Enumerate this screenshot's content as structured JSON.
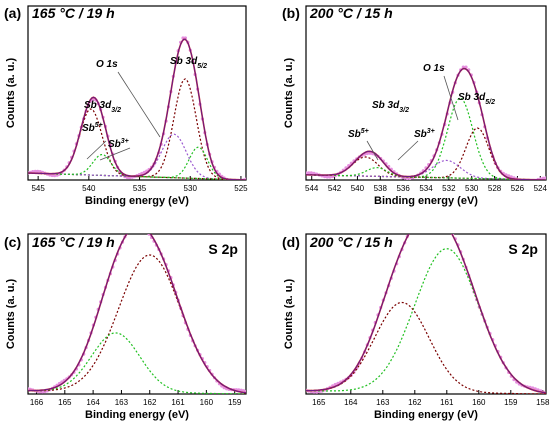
{
  "colors": {
    "envelope": "#6a1a8a",
    "fit": "#c62828",
    "doublet_major": "#7a0000",
    "doublet_minor": "#22c022",
    "data_points": "#e58fe0",
    "o1s": "#9b59d0"
  },
  "chart_data": [
    {
      "id": "a",
      "type": "line",
      "panel_label": "(a)",
      "condition": "165 °C / 19 h",
      "xlabel": "Binding energy (eV)",
      "ylabel": "Counts (a. u.)",
      "xlim": [
        546,
        524.5
      ],
      "xticks": [
        545,
        540,
        535,
        530,
        525
      ],
      "annotations": [
        {
          "text": "O 1s"
        },
        {
          "text": "Sb 3d",
          "sub": "5/2"
        },
        {
          "text": "Sb 3d",
          "sub": "3/2"
        },
        {
          "text": "Sb",
          "sup": "5+"
        },
        {
          "text": "Sb",
          "sup": "3+"
        }
      ],
      "peaks": [
        {
          "role": "doublet_major",
          "center": 530.5,
          "height": 0.57,
          "width": 1.1
        },
        {
          "role": "doublet_minor",
          "center": 529.2,
          "height": 0.18,
          "width": 0.9
        },
        {
          "role": "o1s",
          "center": 531.6,
          "height": 0.25,
          "width": 1.2
        },
        {
          "role": "doublet_major",
          "center": 539.8,
          "height": 0.38,
          "width": 1.1
        },
        {
          "role": "doublet_minor",
          "center": 538.7,
          "height": 0.12,
          "width": 0.9
        }
      ],
      "background": [
        0.04,
        0.0
      ]
    },
    {
      "id": "b",
      "type": "line",
      "panel_label": "(b)",
      "condition": "200 °C / 15 h",
      "xlabel": "Binding energy (eV)",
      "ylabel": "Counts (a. u.)",
      "xlim": [
        544.5,
        523.5
      ],
      "xticks": [
        544,
        542,
        540,
        538,
        536,
        534,
        532,
        530,
        528,
        526,
        524
      ],
      "annotations": [
        {
          "text": "O 1s"
        },
        {
          "text": "Sb 3d",
          "sub": "5/2"
        },
        {
          "text": "Sb 3d",
          "sub": "3/2"
        },
        {
          "text": "Sb",
          "sup": "5+"
        },
        {
          "text": "Sb",
          "sup": "3+"
        }
      ],
      "peaks": [
        {
          "role": "doublet_minor",
          "center": 531.0,
          "height": 0.46,
          "width": 1.1
        },
        {
          "role": "doublet_major",
          "center": 529.5,
          "height": 0.29,
          "width": 1.0
        },
        {
          "role": "o1s",
          "center": 532.2,
          "height": 0.1,
          "width": 1.2
        },
        {
          "role": "doublet_major",
          "center": 539.3,
          "height": 0.11,
          "width": 1.1
        },
        {
          "role": "doublet_minor",
          "center": 538.3,
          "height": 0.05,
          "width": 0.9
        }
      ],
      "background": [
        0.03,
        0.0
      ]
    },
    {
      "id": "c",
      "type": "line",
      "panel_label": "(c)",
      "condition": "165 °C / 19 h",
      "element": "S 2p",
      "xlabel": "Binding energy (eV)",
      "ylabel": "Counts (a. u.)",
      "xlim": [
        166.3,
        158.6
      ],
      "xticks": [
        166,
        165,
        164,
        163,
        162,
        161,
        160,
        159
      ],
      "peaks": [
        {
          "role": "doublet_major",
          "center": 162.0,
          "height": 0.86,
          "width": 1.1
        },
        {
          "role": "doublet_minor",
          "center": 163.2,
          "height": 0.37,
          "width": 0.85
        }
      ],
      "background": [
        0.02,
        0.0
      ]
    },
    {
      "id": "d",
      "type": "line",
      "panel_label": "(d)",
      "condition": "200 °C / 15 h",
      "element": "S 2p",
      "xlabel": "Binding energy (eV)",
      "ylabel": "Counts (a. u.)",
      "xlim": [
        165.4,
        157.9
      ],
      "xticks": [
        165,
        164,
        163,
        162,
        161,
        160,
        159,
        158
      ],
      "peaks": [
        {
          "role": "doublet_minor",
          "center": 161.0,
          "height": 0.9,
          "width": 1.0
        },
        {
          "role": "doublet_major",
          "center": 162.4,
          "height": 0.56,
          "width": 0.85
        }
      ],
      "background": [
        0.02,
        0.0
      ]
    }
  ]
}
